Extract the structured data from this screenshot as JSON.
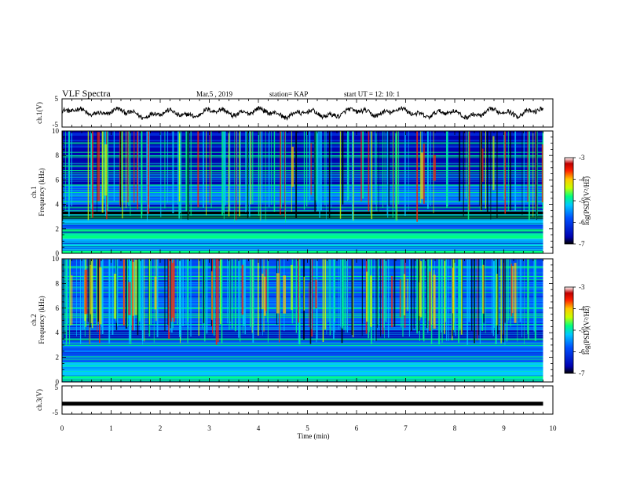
{
  "header": {
    "title": "VLF Spectra",
    "date": "Mar.5 , 2019",
    "station": "station= KAP",
    "start": "start UT = 12: 10: 1"
  },
  "chart_data": [
    {
      "type": "line",
      "ylabel": "ch.1(V)",
      "ylim": [
        -5,
        5
      ],
      "yticks": [
        "5",
        "-5"
      ],
      "xlim": [
        0,
        10
      ],
      "series": [
        {
          "color": "#000000",
          "x_range": [
            0,
            9.8
          ],
          "amplitude_range": [
            -2.8,
            2.6
          ]
        }
      ]
    },
    {
      "type": "heatmap",
      "ylabel": "ch.1\nFrequency (kHz)",
      "xlim": [
        0,
        10
      ],
      "ylim": [
        0,
        10
      ],
      "yticks": [
        "0",
        "2",
        "4",
        "6",
        "8",
        "10"
      ],
      "data_x_range": [
        0,
        9.8
      ],
      "colorbar": {
        "label": "log(PSD)(V²/Hz)",
        "range": [
          -7,
          -3
        ],
        "ticks": [
          "-3",
          "-4",
          "-5",
          "-6",
          "-7"
        ],
        "colors": [
          "#000000",
          "#0000b0",
          "#0050ff",
          "#00c8ff",
          "#00ff80",
          "#c8ff00",
          "#ffc800",
          "#ff2000",
          "#c00000",
          "#ffffff"
        ]
      }
    },
    {
      "type": "heatmap",
      "ylabel": "ch.2\nFrequency (kHz)",
      "xlim": [
        0,
        10
      ],
      "ylim": [
        0,
        10
      ],
      "yticks": [
        "0",
        "2",
        "4",
        "6",
        "8",
        "10"
      ],
      "data_x_range": [
        0,
        9.8
      ],
      "colorbar": {
        "label": "log(PSD)(V²/Hz)",
        "range": [
          -7,
          -3
        ],
        "ticks": [
          "-3",
          "-4",
          "-5",
          "-6",
          "-7"
        ],
        "colors": [
          "#000000",
          "#0000b0",
          "#0050ff",
          "#00c8ff",
          "#00ff80",
          "#c8ff00",
          "#ffc800",
          "#ff2000",
          "#c00000",
          "#ffffff"
        ]
      }
    },
    {
      "type": "line",
      "ylabel": "ch.3(V)",
      "ylim": [
        -5,
        5
      ],
      "yticks": [
        "5",
        "-5"
      ],
      "xlim": [
        0,
        10
      ],
      "xlabel": "Time (min)",
      "xticks": [
        "0",
        "1",
        "2",
        "3",
        "4",
        "5",
        "6",
        "7",
        "8",
        "9",
        "10"
      ],
      "series": [
        {
          "color": "#000000",
          "x_range": [
            0,
            9.8
          ],
          "constant_value": -1.3
        }
      ]
    }
  ]
}
